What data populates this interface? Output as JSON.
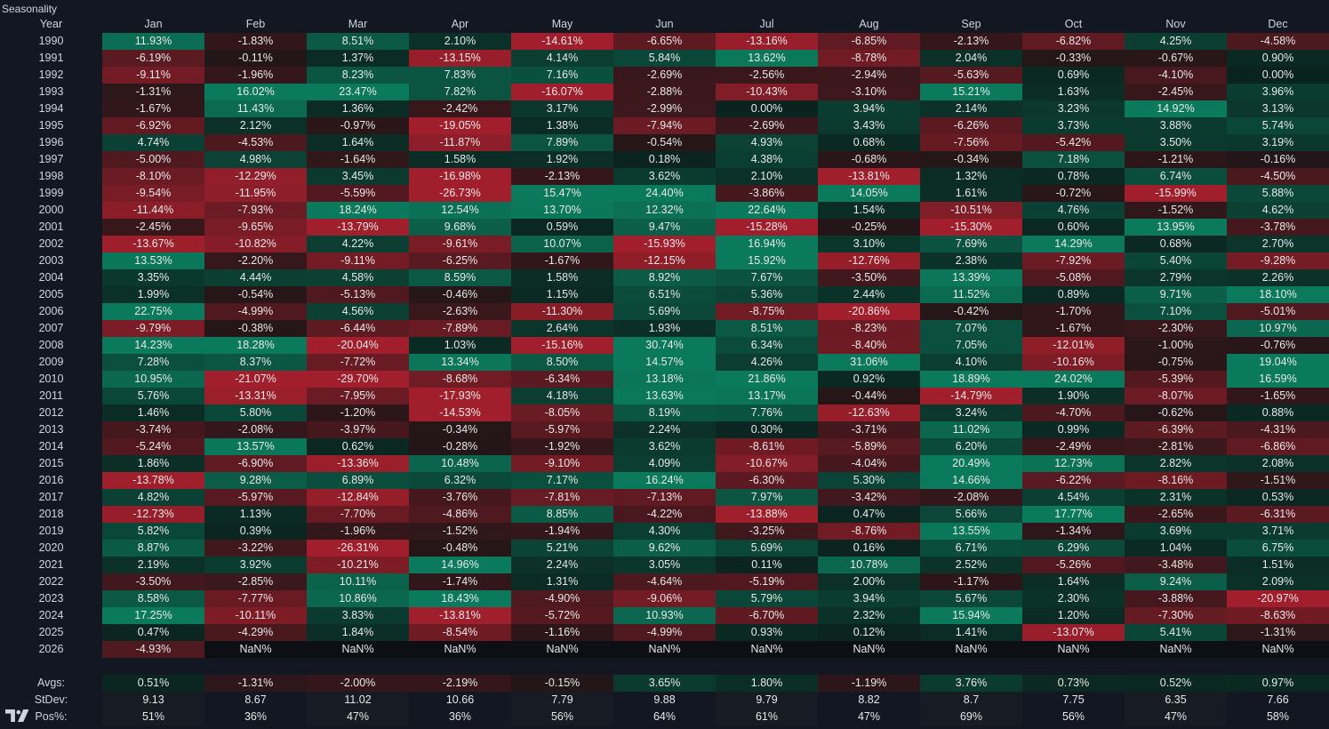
{
  "title": "Seasonality",
  "header": {
    "year_label": "Year",
    "months": [
      "Jan",
      "Feb",
      "Mar",
      "Apr",
      "May",
      "Jun",
      "Jul",
      "Aug",
      "Sep",
      "Oct",
      "Nov",
      "Dec"
    ]
  },
  "rows": [
    {
      "year": "1990",
      "values": [
        "11.93%",
        "-1.83%",
        "8.51%",
        "2.10%",
        "-14.61%",
        "-6.65%",
        "-13.16%",
        "-6.85%",
        "-2.13%",
        "-6.82%",
        "4.25%",
        "-4.58%"
      ]
    },
    {
      "year": "1991",
      "values": [
        "-6.19%",
        "-0.11%",
        "1.37%",
        "-13.15%",
        "4.14%",
        "5.84%",
        "13.62%",
        "-8.78%",
        "2.04%",
        "-0.33%",
        "-0.67%",
        "0.90%"
      ]
    },
    {
      "year": "1992",
      "values": [
        "-9.11%",
        "-1.96%",
        "8.23%",
        "7.83%",
        "7.16%",
        "-2.69%",
        "-2.56%",
        "-2.94%",
        "-5.63%",
        "0.69%",
        "-4.10%",
        "0.00%"
      ]
    },
    {
      "year": "1993",
      "values": [
        "-1.31%",
        "16.02%",
        "23.47%",
        "7.82%",
        "-16.07%",
        "-2.88%",
        "-10.43%",
        "-3.10%",
        "15.21%",
        "1.63%",
        "-2.45%",
        "3.96%"
      ]
    },
    {
      "year": "1994",
      "values": [
        "-1.67%",
        "11.43%",
        "1.36%",
        "-2.42%",
        "3.17%",
        "-2.99%",
        "0.00%",
        "3.94%",
        "2.14%",
        "3.23%",
        "14.92%",
        "3.13%"
      ]
    },
    {
      "year": "1995",
      "values": [
        "-6.92%",
        "2.12%",
        "-0.97%",
        "-19.05%",
        "1.38%",
        "-7.94%",
        "-2.69%",
        "3.43%",
        "-6.26%",
        "3.73%",
        "3.88%",
        "5.74%"
      ]
    },
    {
      "year": "1996",
      "values": [
        "4.74%",
        "-4.53%",
        "1.64%",
        "-11.87%",
        "7.89%",
        "-0.54%",
        "4.93%",
        "0.68%",
        "-7.56%",
        "-5.42%",
        "3.50%",
        "3.19%"
      ]
    },
    {
      "year": "1997",
      "values": [
        "-5.00%",
        "4.98%",
        "-1.64%",
        "1.58%",
        "1.92%",
        "0.18%",
        "4.38%",
        "-0.68%",
        "-0.34%",
        "7.18%",
        "-1.21%",
        "-0.16%"
      ]
    },
    {
      "year": "1998",
      "values": [
        "-8.10%",
        "-12.29%",
        "3.45%",
        "-16.98%",
        "-2.13%",
        "3.62%",
        "2.10%",
        "-13.81%",
        "1.32%",
        "0.78%",
        "6.74%",
        "-4.50%"
      ]
    },
    {
      "year": "1999",
      "values": [
        "-9.54%",
        "-11.95%",
        "-5.59%",
        "-26.73%",
        "15.47%",
        "24.40%",
        "-3.86%",
        "14.05%",
        "1.61%",
        "-0.72%",
        "-15.99%",
        "5.88%"
      ]
    },
    {
      "year": "2000",
      "values": [
        "-11.44%",
        "-7.93%",
        "18.24%",
        "12.54%",
        "13.70%",
        "12.32%",
        "22.64%",
        "1.54%",
        "-10.51%",
        "4.76%",
        "-1.52%",
        "4.62%"
      ]
    },
    {
      "year": "2001",
      "values": [
        "-2.45%",
        "-9.65%",
        "-13.79%",
        "9.68%",
        "0.59%",
        "9.47%",
        "-15.28%",
        "-0.25%",
        "-15.30%",
        "0.60%",
        "13.95%",
        "-3.78%"
      ]
    },
    {
      "year": "2002",
      "values": [
        "-13.67%",
        "-10.82%",
        "4.22%",
        "-9.61%",
        "10.07%",
        "-15.93%",
        "16.94%",
        "3.10%",
        "7.69%",
        "14.29%",
        "0.68%",
        "2.70%"
      ]
    },
    {
      "year": "2003",
      "values": [
        "13.53%",
        "-2.20%",
        "-9.11%",
        "-6.25%",
        "-1.67%",
        "-12.15%",
        "15.92%",
        "-12.76%",
        "2.38%",
        "-7.92%",
        "5.40%",
        "-9.28%"
      ]
    },
    {
      "year": "2004",
      "values": [
        "3.35%",
        "4.44%",
        "4.58%",
        "8.59%",
        "1.58%",
        "8.92%",
        "7.67%",
        "-3.50%",
        "13.39%",
        "-5.08%",
        "2.79%",
        "2.26%"
      ]
    },
    {
      "year": "2005",
      "values": [
        "1.99%",
        "-0.54%",
        "-5.13%",
        "-0.46%",
        "1.15%",
        "6.51%",
        "5.36%",
        "2.44%",
        "11.52%",
        "0.89%",
        "9.71%",
        "18.10%"
      ]
    },
    {
      "year": "2006",
      "values": [
        "22.75%",
        "-4.99%",
        "4.56%",
        "-2.63%",
        "-11.30%",
        "5.69%",
        "-8.75%",
        "-20.86%",
        "-0.42%",
        "-1.70%",
        "7.10%",
        "-5.01%"
      ]
    },
    {
      "year": "2007",
      "values": [
        "-9.79%",
        "-0.38%",
        "-6.44%",
        "-7.89%",
        "2.64%",
        "1.93%",
        "8.51%",
        "-8.23%",
        "7.07%",
        "-1.67%",
        "-2.30%",
        "10.97%"
      ]
    },
    {
      "year": "2008",
      "values": [
        "14.23%",
        "18.28%",
        "-20.04%",
        "1.03%",
        "-15.16%",
        "30.74%",
        "6.34%",
        "-8.40%",
        "7.05%",
        "-12.01%",
        "-1.00%",
        "-0.76%"
      ]
    },
    {
      "year": "2009",
      "values": [
        "7.28%",
        "8.37%",
        "-7.72%",
        "13.34%",
        "8.50%",
        "14.57%",
        "4.26%",
        "31.06%",
        "4.10%",
        "-10.16%",
        "-0.75%",
        "19.04%"
      ]
    },
    {
      "year": "2010",
      "values": [
        "10.95%",
        "-21.07%",
        "-29.70%",
        "-8.68%",
        "-6.34%",
        "13.18%",
        "21.86%",
        "0.92%",
        "18.89%",
        "24.02%",
        "-5.39%",
        "16.59%"
      ]
    },
    {
      "year": "2011",
      "values": [
        "5.76%",
        "-13.31%",
        "-7.95%",
        "-17.93%",
        "4.18%",
        "13.63%",
        "13.17%",
        "-0.44%",
        "-14.79%",
        "1.90%",
        "-8.07%",
        "-1.65%"
      ]
    },
    {
      "year": "2012",
      "values": [
        "1.46%",
        "5.80%",
        "-1.20%",
        "-14.53%",
        "-8.05%",
        "8.19%",
        "7.76%",
        "-12.63%",
        "3.24%",
        "-4.70%",
        "-0.62%",
        "0.88%"
      ]
    },
    {
      "year": "2013",
      "values": [
        "-3.74%",
        "-2.08%",
        "-3.97%",
        "-0.34%",
        "-5.97%",
        "2.24%",
        "0.30%",
        "-3.71%",
        "11.02%",
        "0.99%",
        "-6.39%",
        "-4.31%"
      ]
    },
    {
      "year": "2014",
      "values": [
        "-5.24%",
        "13.57%",
        "0.62%",
        "-0.28%",
        "-1.92%",
        "3.62%",
        "-8.61%",
        "-5.89%",
        "6.20%",
        "-2.49%",
        "-2.81%",
        "-6.86%"
      ]
    },
    {
      "year": "2015",
      "values": [
        "1.86%",
        "-6.90%",
        "-13.36%",
        "10.48%",
        "-9.10%",
        "4.09%",
        "-10.67%",
        "-4.04%",
        "20.49%",
        "12.73%",
        "2.82%",
        "2.08%"
      ]
    },
    {
      "year": "2016",
      "values": [
        "-13.78%",
        "9.28%",
        "6.89%",
        "6.32%",
        "7.17%",
        "16.24%",
        "-6.30%",
        "5.30%",
        "14.66%",
        "-6.22%",
        "-8.16%",
        "-1.51%"
      ]
    },
    {
      "year": "2017",
      "values": [
        "4.82%",
        "-5.97%",
        "-12.84%",
        "-3.76%",
        "-7.81%",
        "-7.13%",
        "7.97%",
        "-3.42%",
        "-2.08%",
        "4.54%",
        "2.31%",
        "0.53%"
      ]
    },
    {
      "year": "2018",
      "values": [
        "-12.73%",
        "1.13%",
        "-7.70%",
        "-4.86%",
        "8.85%",
        "-4.22%",
        "-13.88%",
        "0.47%",
        "5.66%",
        "17.77%",
        "-2.65%",
        "-6.31%"
      ]
    },
    {
      "year": "2019",
      "values": [
        "5.82%",
        "0.39%",
        "-1.96%",
        "-1.52%",
        "-1.94%",
        "4.30%",
        "-3.25%",
        "-8.76%",
        "13.55%",
        "-1.34%",
        "3.69%",
        "3.71%"
      ]
    },
    {
      "year": "2020",
      "values": [
        "8.87%",
        "-3.22%",
        "-26.31%",
        "-0.48%",
        "5.21%",
        "9.62%",
        "5.69%",
        "0.16%",
        "6.71%",
        "6.29%",
        "1.04%",
        "6.75%"
      ]
    },
    {
      "year": "2021",
      "values": [
        "2.19%",
        "3.92%",
        "-10.21%",
        "14.96%",
        "2.24%",
        "3.05%",
        "0.11%",
        "10.78%",
        "2.52%",
        "-5.26%",
        "-3.48%",
        "1.51%"
      ]
    },
    {
      "year": "2022",
      "values": [
        "-3.50%",
        "-2.85%",
        "10.11%",
        "-1.74%",
        "1.31%",
        "-4.64%",
        "-5.19%",
        "2.00%",
        "-1.17%",
        "1.64%",
        "9.24%",
        "2.09%"
      ]
    },
    {
      "year": "2023",
      "values": [
        "8.58%",
        "-7.77%",
        "10.86%",
        "18.43%",
        "-4.90%",
        "-9.06%",
        "5.79%",
        "3.94%",
        "5.67%",
        "2.30%",
        "-3.88%",
        "-20.97%"
      ]
    },
    {
      "year": "2024",
      "values": [
        "17.25%",
        "-10.11%",
        "3.83%",
        "-13.81%",
        "-5.72%",
        "10.93%",
        "-6.70%",
        "2.32%",
        "15.94%",
        "1.20%",
        "-7.30%",
        "-8.63%"
      ]
    },
    {
      "year": "2025",
      "values": [
        "0.47%",
        "-4.29%",
        "1.84%",
        "-8.54%",
        "-1.16%",
        "-4.99%",
        "0.93%",
        "0.12%",
        "1.41%",
        "-13.07%",
        "5.41%",
        "-1.31%"
      ]
    },
    {
      "year": "2026",
      "values": [
        "-4.93%",
        "NaN%",
        "NaN%",
        "NaN%",
        "NaN%",
        "NaN%",
        "NaN%",
        "NaN%",
        "NaN%",
        "NaN%",
        "NaN%",
        "NaN%"
      ]
    }
  ],
  "stats": [
    {
      "label": "Avgs:",
      "values": [
        "0.51%",
        "-1.31%",
        "-2.00%",
        "-2.19%",
        "-0.15%",
        "3.65%",
        "1.80%",
        "-1.19%",
        "3.76%",
        "0.73%",
        "0.52%",
        "0.97%"
      ],
      "colored": true
    },
    {
      "label": "StDev:",
      "values": [
        "9.13",
        "8.67",
        "11.02",
        "10.66",
        "7.79",
        "9.88",
        "9.79",
        "8.82",
        "8.7",
        "7.75",
        "6.35",
        "7.66"
      ],
      "colored": false
    },
    {
      "label": "Pos%:",
      "values": [
        "51%",
        "36%",
        "47%",
        "36%",
        "56%",
        "64%",
        "61%",
        "47%",
        "69%",
        "56%",
        "47%",
        "58%"
      ],
      "colored": false
    }
  ],
  "colors": {
    "background": "#131722",
    "positive": "#0b7a5c",
    "negative": "#a11f2c",
    "neutral": "#0b1414",
    "text": "#e8e8e8",
    "label": "#d1d4dc"
  },
  "logo_icon": "tradingview-logo-icon"
}
